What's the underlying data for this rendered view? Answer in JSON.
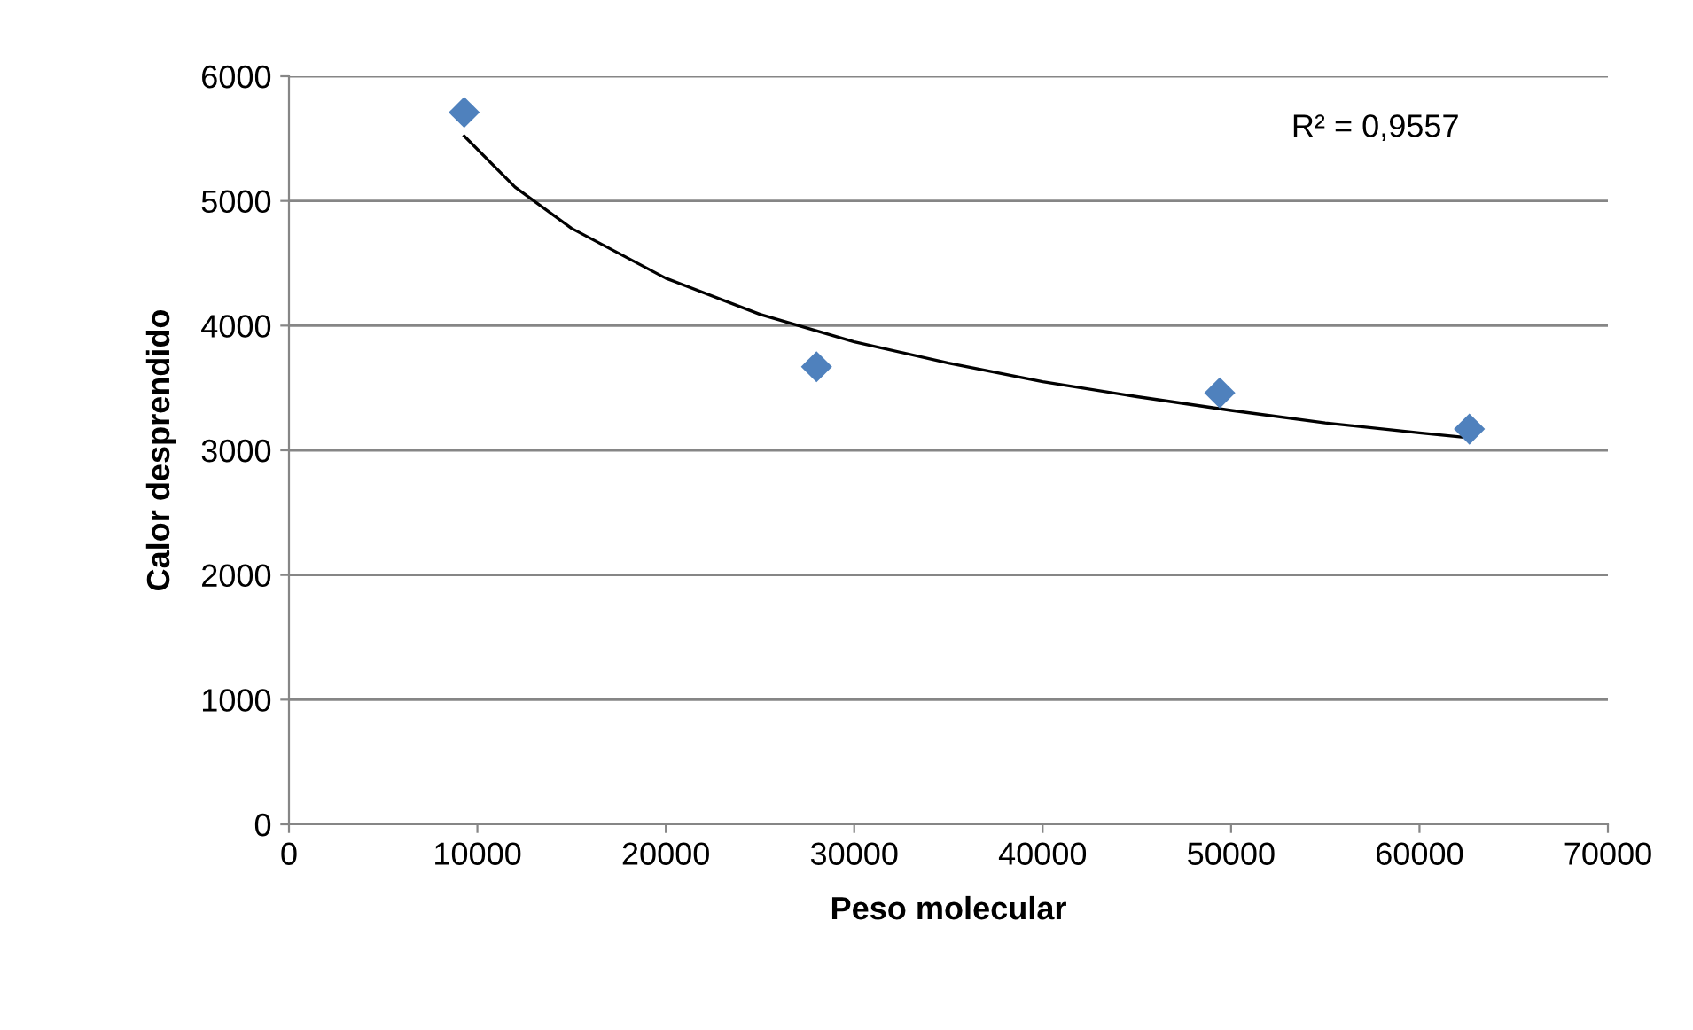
{
  "chart_data": {
    "type": "scatter",
    "xlabel": "Peso molecular",
    "ylabel": "Calor desprendido",
    "annotations": [
      "R² = 0,9557"
    ],
    "series": [
      {
        "type": "scatter",
        "color": "#4f81bd",
        "marker": "diamond",
        "x": [
          9300,
          28000,
          49400,
          62650
        ],
        "values": [
          5710,
          3670,
          3460,
          3170
        ]
      },
      {
        "type": "line",
        "color": "#000000",
        "marker": "none",
        "line_style": "solid",
        "x": [
          9300,
          12000,
          15000,
          20000,
          25000,
          30000,
          35000,
          40000,
          45000,
          50000,
          55000,
          60000,
          62650
        ],
        "values": [
          5520,
          5110,
          4780,
          4380,
          4090,
          3870,
          3700,
          3550,
          3430,
          3320,
          3220,
          3140,
          3100
        ]
      }
    ],
    "xlim": [
      0,
      70000
    ],
    "xticks": [
      0,
      10000,
      20000,
      30000,
      40000,
      50000,
      60000,
      70000
    ],
    "ylim": [
      0,
      6000
    ],
    "yticks": [
      0,
      1000,
      2000,
      3000,
      4000,
      5000,
      6000
    ],
    "grid": "y",
    "legend": false
  }
}
